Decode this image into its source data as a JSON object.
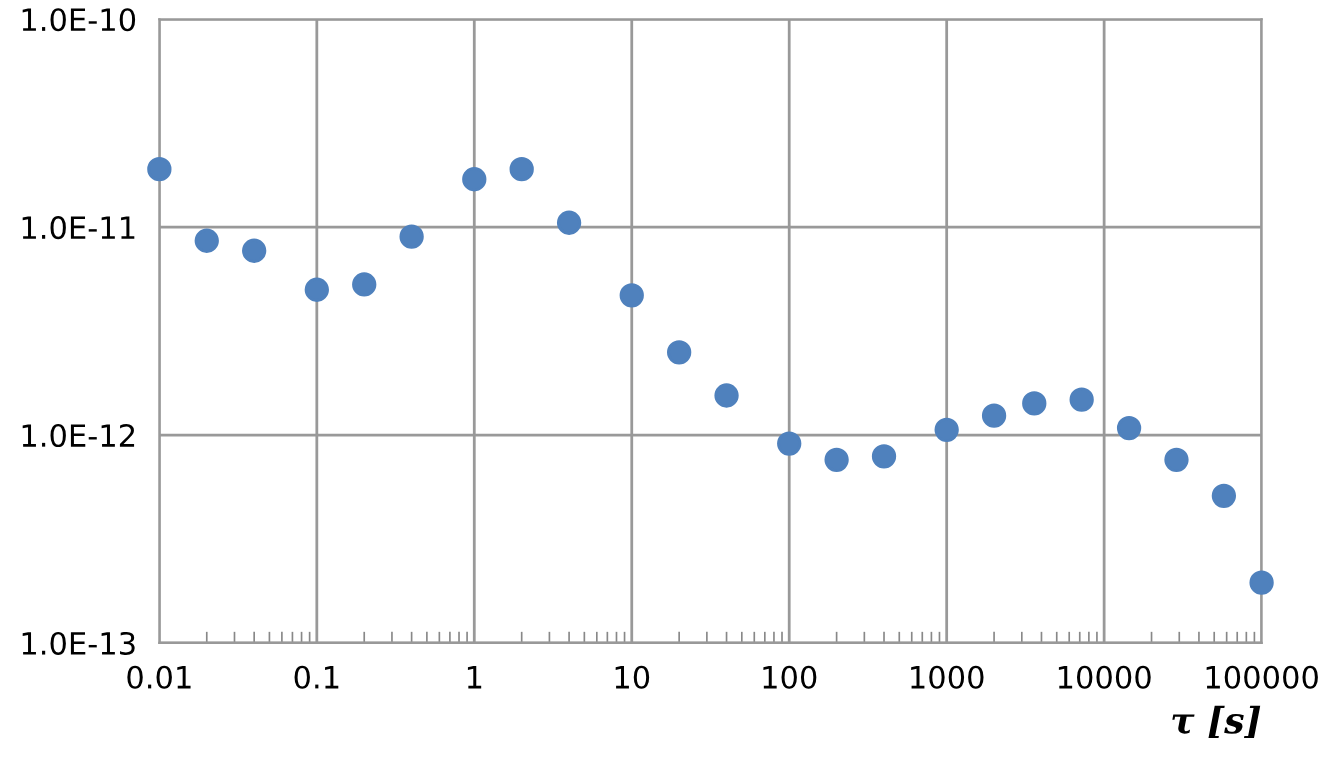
{
  "chart_data": {
    "type": "scatter",
    "xlabel": "τ [s]",
    "log": "xy",
    "grid": true,
    "marker": "circle",
    "x": [
      0.01,
      0.02,
      0.04,
      0.1,
      0.2,
      0.4,
      1,
      2,
      4,
      10,
      20,
      40,
      100,
      200,
      400,
      1000,
      2000,
      3600,
      7200,
      14400,
      28800,
      57600,
      100000
    ],
    "series": [
      {
        "color": "#4f81bd",
        "values": [
          1.9e-11,
          8.6e-12,
          7.7e-12,
          5e-12,
          5.3e-12,
          9e-12,
          1.7e-11,
          1.9e-11,
          1.05e-11,
          4.7e-12,
          2.5e-12,
          1.55e-12,
          9.1e-13,
          7.6e-13,
          7.9e-13,
          1.06e-12,
          1.24e-12,
          1.42e-12,
          1.48e-12,
          1.08e-12,
          7.6e-13,
          5.1e-13,
          1.95e-13
        ]
      }
    ],
    "xlim": [
      0.01,
      100000
    ],
    "ylim": [
      1e-13,
      1e-10
    ],
    "xticks": [
      0.01,
      0.1,
      1,
      10,
      100,
      1000,
      10000,
      100000
    ],
    "yticks": [
      {
        "value": 1e-13,
        "label": "1.0E-13"
      },
      {
        "value": 1e-12,
        "label": "1.0E-12"
      },
      {
        "value": 1e-11,
        "label": "1.0E-11"
      },
      {
        "value": 1e-10,
        "label": "1.0E-10"
      }
    ]
  }
}
